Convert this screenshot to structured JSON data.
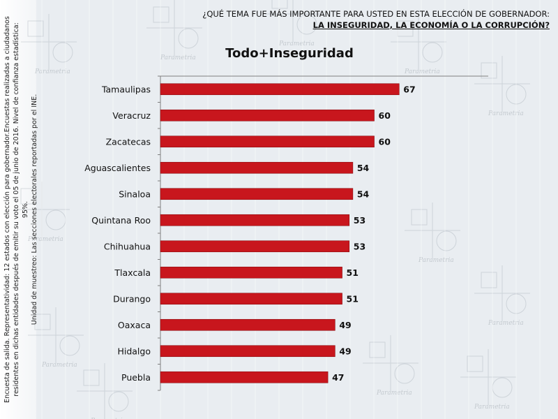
{
  "header": {
    "question_line1": "¿QUÉ TEMA FUE MÁS IMPORTANTE PARA USTED EN ESTA ELECCIÓN DE GOBERNADOR:",
    "question_line2": "LA INSEGURIDAD, LA ECONOMÍA O LA CORRUPCIÓN?"
  },
  "side_note": {
    "line1": "Encuesta de salida. Representatividad: 12 estados con elección para gobernador.Encuestas realizadas a ciudadanos",
    "line2": "residentes en dichas entidades después de emitir su voto el 05 de junio de 2016. Nivel de confianza estadística: 95%.",
    "line3": "Unidad de muestreo: Las secciones electorales reportadas por el INE."
  },
  "watermark": "Parametria",
  "colors": {
    "bar": "#c8161d",
    "axis": "#7f7f7f"
  },
  "chart_data": {
    "type": "bar",
    "orientation": "horizontal",
    "title": "Todo+Inseguridad",
    "categories": [
      "Tamaulipas",
      "Veracruz",
      "Zacatecas",
      "Aguascalientes",
      "Sinaloa",
      "Quintana Roo",
      "Chihuahua",
      "Tlaxcala",
      "Durango",
      "Oaxaca",
      "Hidalgo",
      "Puebla"
    ],
    "values": [
      67,
      60,
      60,
      54,
      54,
      53,
      53,
      51,
      51,
      49,
      49,
      47
    ],
    "xlim": [
      0,
      92
    ],
    "grid": false,
    "legend": "none"
  }
}
